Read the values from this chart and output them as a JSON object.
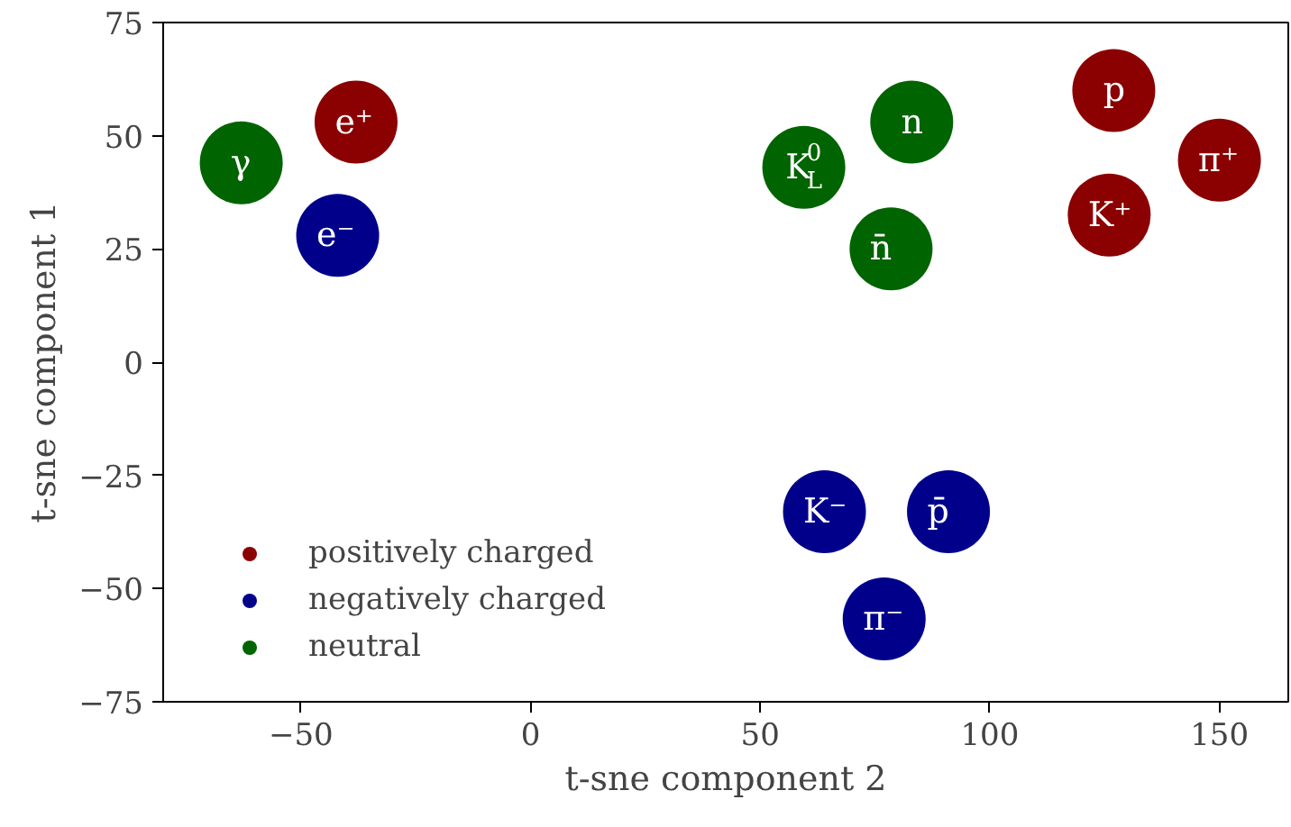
{
  "chart_data": {
    "type": "scatter",
    "xlabel": "t-sne component 2",
    "ylabel": "t-sne component 1",
    "xlim": [
      -80,
      165
    ],
    "ylim": [
      -75,
      75
    ],
    "xticks": [
      {
        "value": -50,
        "label": "−50"
      },
      0,
      50,
      100,
      150
    ],
    "yticks": [
      {
        "value": -75,
        "label": "−75"
      },
      {
        "value": -50,
        "label": "−50"
      },
      {
        "value": -25,
        "label": "−25"
      },
      0,
      25,
      50,
      75
    ],
    "marker": "circle",
    "grid": false,
    "legend": "bottom left",
    "series": [
      {
        "name": "positively charged",
        "color": "#8b0000",
        "x": [
          -38,
          127,
          150,
          126
        ],
        "values": [
          53,
          60,
          44.6,
          32.5
        ]
      },
      {
        "name": "negatively charged",
        "color": "#00008b",
        "x": [
          -42,
          64,
          91,
          77
        ],
        "values": [
          28,
          -33,
          -33,
          -56.7
        ]
      },
      {
        "name": "neutral",
        "color": "#006400",
        "x": [
          -63,
          59.5,
          83,
          78.5
        ],
        "values": [
          44,
          43,
          53,
          25
        ]
      }
    ],
    "annotations": [
      {
        "text": "e⁺",
        "x": -38,
        "y": 53
      },
      {
        "text": "p",
        "x": 127,
        "y": 60
      },
      {
        "text": "π⁺",
        "x": 150,
        "y": 44.6
      },
      {
        "text": "K⁺",
        "x": 126,
        "y": 32.5
      },
      {
        "text": "e⁻",
        "x": -42,
        "y": 28
      },
      {
        "text": "K⁻",
        "x": 64,
        "y": -33
      },
      {
        "text": "p̄",
        "x": 91,
        "y": -33
      },
      {
        "text": "π⁻",
        "x": 77,
        "y": -56.7
      },
      {
        "text": "γ",
        "x": -63,
        "y": 44
      },
      {
        "text": "K$^{0}$$_{L}$",
        "x": 59.5,
        "y": 43
      },
      {
        "text": "n",
        "x": 83,
        "y": 53
      },
      {
        "text": "n̄",
        "x": 78.5,
        "y": 25
      }
    ]
  }
}
